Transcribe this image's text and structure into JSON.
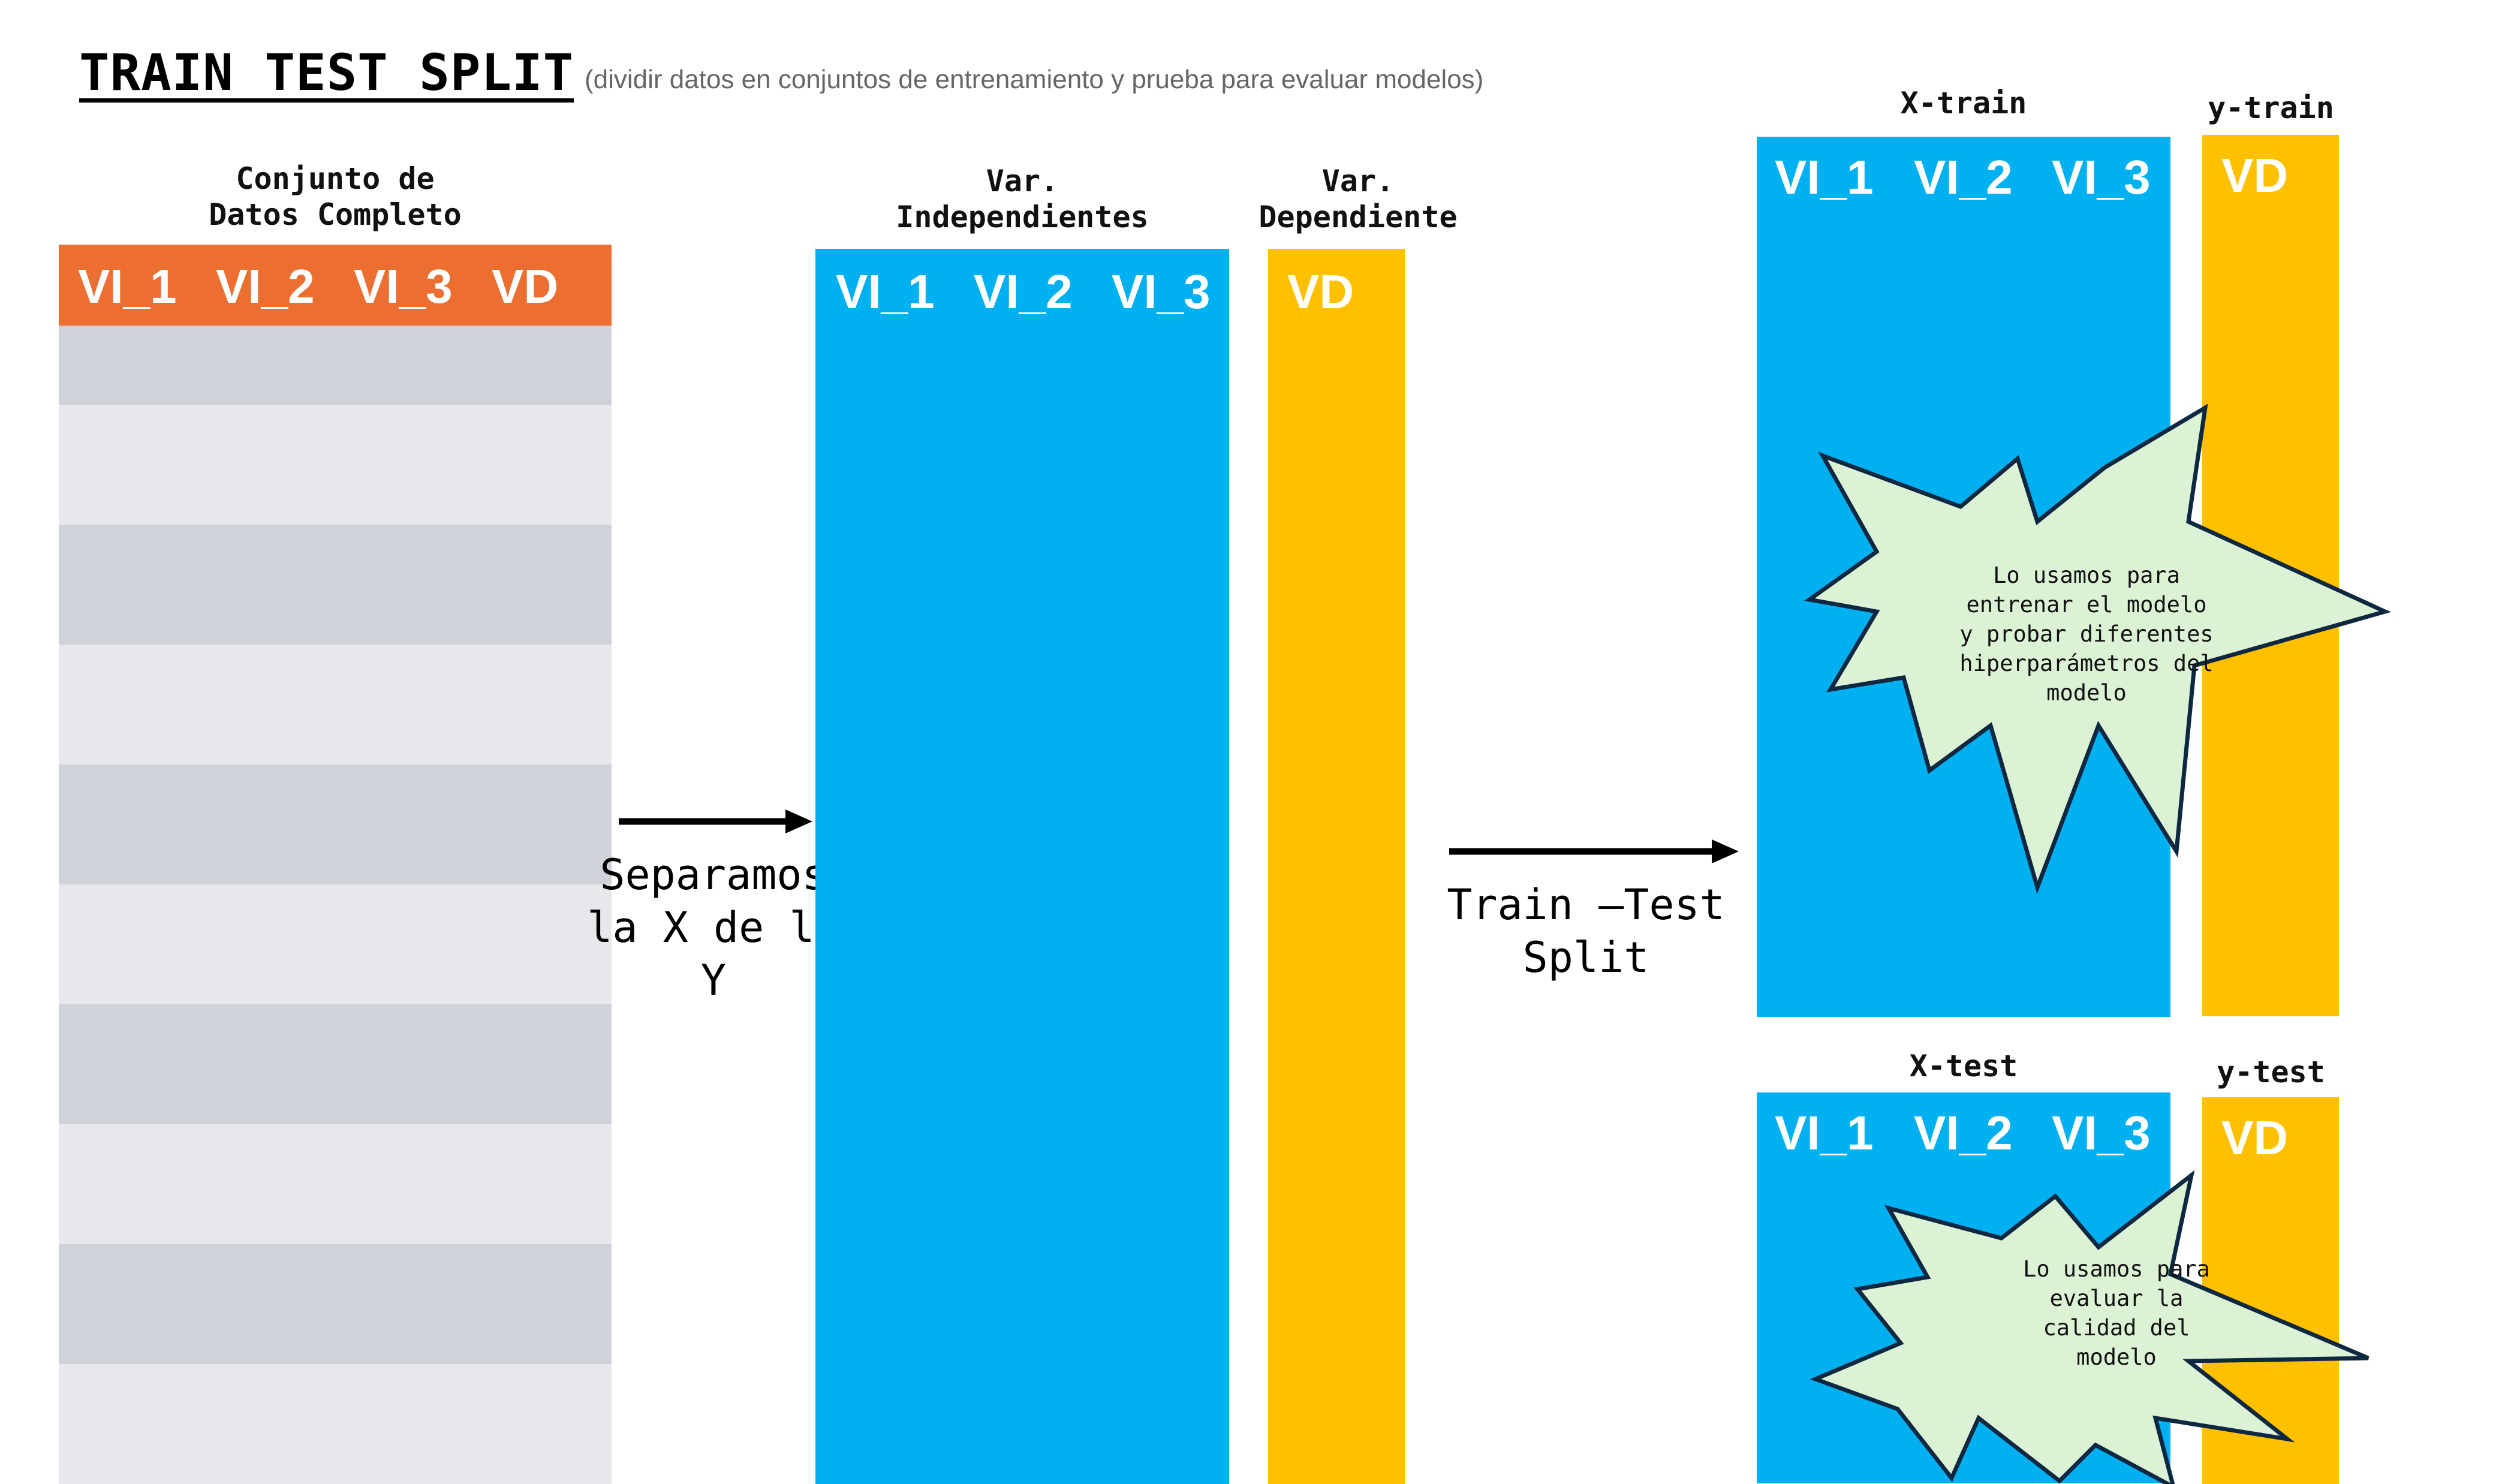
{
  "header": {
    "title": "TRAIN TEST SPLIT",
    "subtitle": "(dividir datos en conjuntos de entrenamiento y prueba para evaluar modelos)"
  },
  "full_dataset": {
    "label_line1": "Conjunto de",
    "label_line2": "Datos Completo",
    "columns": [
      "VI_1",
      "VI_2",
      "VI_3",
      "VD"
    ]
  },
  "independent": {
    "label_line1": "Var.",
    "label_line2": "Independientes",
    "columns": [
      "VI_1",
      "VI_2",
      "VI_3"
    ]
  },
  "dependent": {
    "label_line1": "Var.",
    "label_line2": "Dependiente",
    "column": "VD"
  },
  "arrows": {
    "separate_line1": "Separamos",
    "separate_line2": "la X de la",
    "separate_line3": "Y",
    "split_line1": "Train –Test",
    "split_line2": "Split"
  },
  "x_train": {
    "label": "X-train",
    "columns": [
      "VI_1",
      "VI_2",
      "VI_3"
    ]
  },
  "y_train": {
    "label": "y-train",
    "column": "VD"
  },
  "x_test": {
    "label": "X-test",
    "columns": [
      "VI_1",
      "VI_2",
      "VI_3"
    ]
  },
  "y_test": {
    "label": "y-test",
    "column": "VD"
  },
  "train_note": {
    "line1": "Lo usamos para",
    "line2": "entrenar el modelo",
    "line3": "y probar diferentes",
    "line4": "hiperparámetros del",
    "line5": "modelo"
  },
  "test_note": {
    "line1": "Lo usamos para",
    "line2": "evaluar la",
    "line3": "calidad del",
    "line4": "modelo"
  },
  "colors": {
    "orange": "#EC6F31",
    "blue": "#00B0F0",
    "yellow": "#FFC000",
    "stripe_dark": "#CFD3D9",
    "stripe_light": "#E6E8EB",
    "burst_fill": "#DCF2D4",
    "burst_stroke": "#0E2841"
  }
}
